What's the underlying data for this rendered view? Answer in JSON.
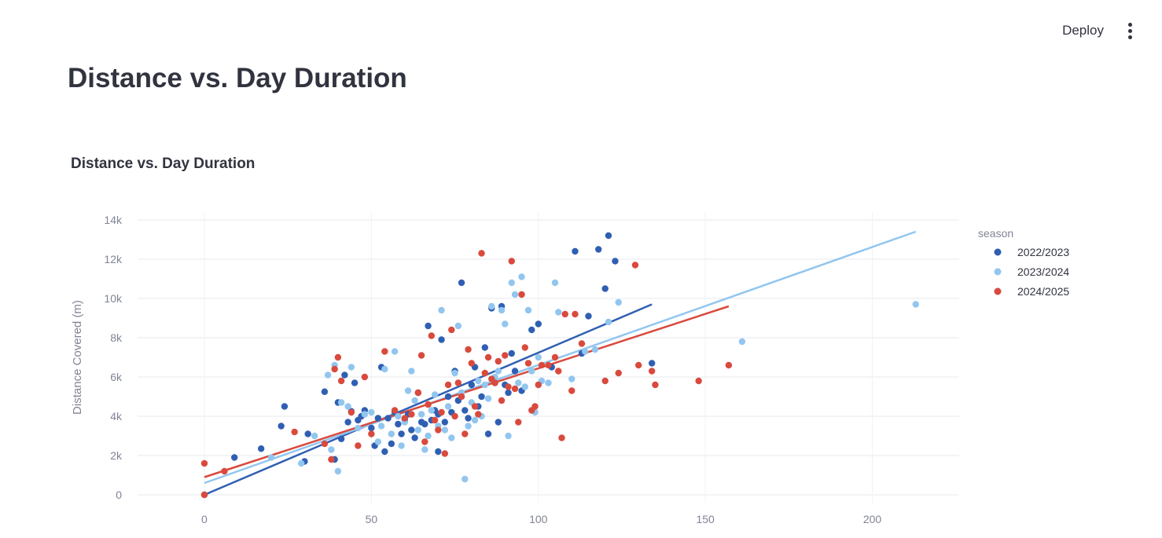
{
  "header": {
    "deploy_label": "Deploy",
    "menu_icon": "more-vertical-icon"
  },
  "page": {
    "title": "Distance vs. Day Duration"
  },
  "chart_data": {
    "type": "scatter",
    "title": "Distance vs. Day Duration",
    "xlabel": "",
    "ylabel": "Distance Covered (m)",
    "xlim": [
      -20,
      226
    ],
    "ylim": [
      -400,
      14400
    ],
    "x_ticks": [
      0,
      50,
      100,
      150,
      200
    ],
    "y_ticks": [
      0,
      2000,
      4000,
      6000,
      8000,
      10000,
      12000,
      14000
    ],
    "y_tick_labels": [
      "0",
      "2k",
      "4k",
      "6k",
      "8k",
      "10k",
      "12k",
      "14k"
    ],
    "grid": true,
    "legend": {
      "title": "season",
      "placement": "right"
    },
    "series": [
      {
        "name": "2022/2023",
        "color": "#2f5fb3",
        "points": [
          [
            0,
            0
          ],
          [
            9,
            1900
          ],
          [
            17,
            2350
          ],
          [
            23,
            3500
          ],
          [
            24,
            4500
          ],
          [
            31,
            3100
          ],
          [
            30,
            1700
          ],
          [
            36,
            5250
          ],
          [
            39,
            1800
          ],
          [
            40,
            4700
          ],
          [
            41,
            2850
          ],
          [
            42,
            6100
          ],
          [
            43,
            3700
          ],
          [
            44,
            4250
          ],
          [
            45,
            5700
          ],
          [
            46,
            3800
          ],
          [
            47,
            4000
          ],
          [
            48,
            4300
          ],
          [
            50,
            3400
          ],
          [
            51,
            2500
          ],
          [
            52,
            3900
          ],
          [
            53,
            6500
          ],
          [
            54,
            2200
          ],
          [
            55,
            3900
          ],
          [
            56,
            2600
          ],
          [
            57,
            4200
          ],
          [
            58,
            3600
          ],
          [
            59,
            3100
          ],
          [
            60,
            3800
          ],
          [
            61,
            4100
          ],
          [
            62,
            3300
          ],
          [
            63,
            2900
          ],
          [
            64,
            5200
          ],
          [
            65,
            3700
          ],
          [
            66,
            3600
          ],
          [
            67,
            8600
          ],
          [
            68,
            3800
          ],
          [
            69,
            4300
          ],
          [
            70,
            2200
          ],
          [
            70,
            4100
          ],
          [
            71,
            7900
          ],
          [
            72,
            3700
          ],
          [
            73,
            5000
          ],
          [
            74,
            4200
          ],
          [
            75,
            6300
          ],
          [
            76,
            4800
          ],
          [
            77,
            10800
          ],
          [
            78,
            4300
          ],
          [
            79,
            3900
          ],
          [
            80,
            5600
          ],
          [
            81,
            6500
          ],
          [
            82,
            4500
          ],
          [
            83,
            5000
          ],
          [
            84,
            7500
          ],
          [
            85,
            3100
          ],
          [
            86,
            9500
          ],
          [
            87,
            5700
          ],
          [
            88,
            3700
          ],
          [
            89,
            9600
          ],
          [
            90,
            5600
          ],
          [
            91,
            5200
          ],
          [
            92,
            7200
          ],
          [
            93,
            6300
          ],
          [
            95,
            5300
          ],
          [
            98,
            8400
          ],
          [
            100,
            8700
          ],
          [
            104,
            6500
          ],
          [
            111,
            12400
          ],
          [
            113,
            7200
          ],
          [
            115,
            9100
          ],
          [
            118,
            12500
          ],
          [
            120,
            10500
          ],
          [
            121,
            13200
          ],
          [
            123,
            11900
          ],
          [
            134,
            6700
          ]
        ],
        "trend": {
          "x": [
            0,
            134
          ],
          "y": [
            0,
            9700
          ]
        }
      },
      {
        "name": "2023/2024",
        "color": "#92c6ef",
        "points": [
          [
            0,
            0
          ],
          [
            20,
            1900
          ],
          [
            29,
            1600
          ],
          [
            33,
            3000
          ],
          [
            37,
            6100
          ],
          [
            38,
            2300
          ],
          [
            39,
            6600
          ],
          [
            40,
            1200
          ],
          [
            41,
            4700
          ],
          [
            43,
            4500
          ],
          [
            44,
            6500
          ],
          [
            46,
            3400
          ],
          [
            48,
            4100
          ],
          [
            50,
            4200
          ],
          [
            52,
            2700
          ],
          [
            53,
            3500
          ],
          [
            54,
            6400
          ],
          [
            56,
            3100
          ],
          [
            57,
            7300
          ],
          [
            58,
            4000
          ],
          [
            59,
            2500
          ],
          [
            60,
            3700
          ],
          [
            61,
            5300
          ],
          [
            62,
            6300
          ],
          [
            63,
            4800
          ],
          [
            64,
            3300
          ],
          [
            65,
            4100
          ],
          [
            66,
            2300
          ],
          [
            67,
            3000
          ],
          [
            68,
            4300
          ],
          [
            69,
            5100
          ],
          [
            70,
            3500
          ],
          [
            71,
            9400
          ],
          [
            72,
            3300
          ],
          [
            73,
            4500
          ],
          [
            74,
            2900
          ],
          [
            75,
            6200
          ],
          [
            76,
            8600
          ],
          [
            77,
            5200
          ],
          [
            78,
            800
          ],
          [
            79,
            3500
          ],
          [
            80,
            4700
          ],
          [
            81,
            3800
          ],
          [
            82,
            5800
          ],
          [
            83,
            4000
          ],
          [
            84,
            5600
          ],
          [
            85,
            4900
          ],
          [
            86,
            9600
          ],
          [
            87,
            6000
          ],
          [
            88,
            6300
          ],
          [
            89,
            9400
          ],
          [
            90,
            8700
          ],
          [
            91,
            3000
          ],
          [
            92,
            10800
          ],
          [
            93,
            10200
          ],
          [
            94,
            5700
          ],
          [
            95,
            11100
          ],
          [
            96,
            5500
          ],
          [
            97,
            9400
          ],
          [
            98,
            6300
          ],
          [
            99,
            4200
          ],
          [
            100,
            7000
          ],
          [
            101,
            5800
          ],
          [
            103,
            5700
          ],
          [
            105,
            10800
          ],
          [
            106,
            9300
          ],
          [
            110,
            5900
          ],
          [
            114,
            7300
          ],
          [
            117,
            7400
          ],
          [
            121,
            8800
          ],
          [
            124,
            9800
          ],
          [
            161,
            7800
          ],
          [
            213,
            9700
          ]
        ],
        "trend": {
          "x": [
            0,
            213
          ],
          "y": [
            600,
            13400
          ]
        }
      },
      {
        "name": "2024/2025",
        "color": "#d94a3d",
        "points": [
          [
            0,
            0
          ],
          [
            0,
            1600
          ],
          [
            6,
            1200
          ],
          [
            27,
            3200
          ],
          [
            36,
            2600
          ],
          [
            38,
            1800
          ],
          [
            39,
            6400
          ],
          [
            40,
            7000
          ],
          [
            41,
            5800
          ],
          [
            44,
            4200
          ],
          [
            46,
            2500
          ],
          [
            48,
            6000
          ],
          [
            50,
            3100
          ],
          [
            54,
            7300
          ],
          [
            57,
            4300
          ],
          [
            60,
            3900
          ],
          [
            62,
            4100
          ],
          [
            64,
            5200
          ],
          [
            65,
            7100
          ],
          [
            66,
            2700
          ],
          [
            67,
            4600
          ],
          [
            68,
            8100
          ],
          [
            69,
            3800
          ],
          [
            70,
            3300
          ],
          [
            71,
            4200
          ],
          [
            72,
            2100
          ],
          [
            73,
            5600
          ],
          [
            74,
            8400
          ],
          [
            75,
            4000
          ],
          [
            76,
            5700
          ],
          [
            77,
            5000
          ],
          [
            78,
            3100
          ],
          [
            79,
            7400
          ],
          [
            80,
            6700
          ],
          [
            81,
            4500
          ],
          [
            82,
            4100
          ],
          [
            83,
            12300
          ],
          [
            84,
            6200
          ],
          [
            85,
            7000
          ],
          [
            86,
            5900
          ],
          [
            87,
            5700
          ],
          [
            88,
            6800
          ],
          [
            89,
            4800
          ],
          [
            90,
            7100
          ],
          [
            91,
            5500
          ],
          [
            92,
            11900
          ],
          [
            93,
            5400
          ],
          [
            94,
            3700
          ],
          [
            95,
            10200
          ],
          [
            96,
            7500
          ],
          [
            97,
            6700
          ],
          [
            98,
            4300
          ],
          [
            99,
            4500
          ],
          [
            100,
            5600
          ],
          [
            101,
            6600
          ],
          [
            103,
            6600
          ],
          [
            105,
            7000
          ],
          [
            106,
            6300
          ],
          [
            107,
            2900
          ],
          [
            108,
            9200
          ],
          [
            110,
            5300
          ],
          [
            111,
            9200
          ],
          [
            113,
            7700
          ],
          [
            120,
            5800
          ],
          [
            124,
            6200
          ],
          [
            129,
            11700
          ],
          [
            130,
            6600
          ],
          [
            134,
            6300
          ],
          [
            135,
            5600
          ],
          [
            148,
            5800
          ],
          [
            157,
            6600
          ]
        ],
        "trend": {
          "x": [
            0,
            157
          ],
          "y": [
            900,
            9600
          ]
        }
      }
    ]
  }
}
